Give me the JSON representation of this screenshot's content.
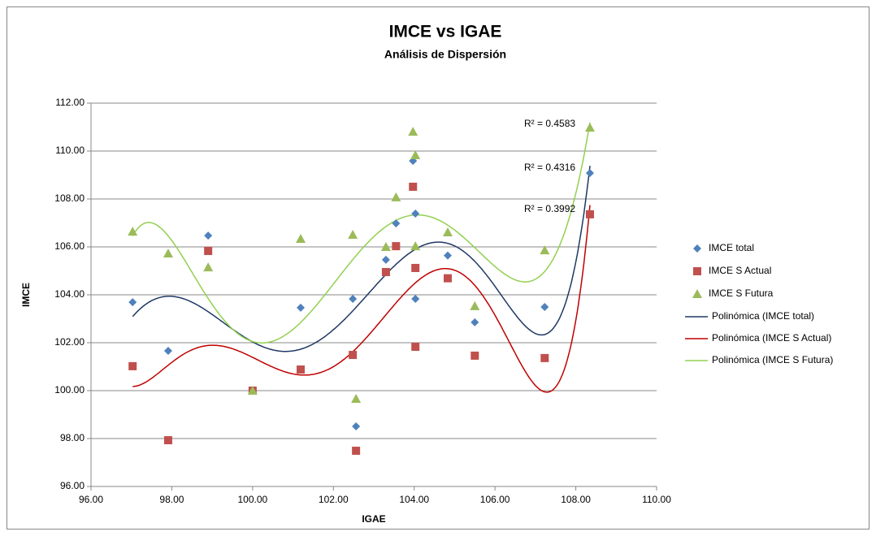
{
  "chart_data": {
    "type": "scatter",
    "title": "IMCE vs IGAE",
    "subtitle": "Análisis de Dispersión",
    "x_label": "IGAE",
    "y_label": "IMCE",
    "x": [
      97.03,
      97.91,
      98.9,
      100.0,
      101.19,
      102.48,
      102.56,
      103.3,
      103.55,
      103.97,
      104.03,
      104.03,
      104.83,
      105.5,
      107.23,
      108.35
    ],
    "series": [
      {
        "name": "IMCE total",
        "color": "#4f81bd",
        "marker": "diamond",
        "values": [
          103.69,
          101.66,
          106.47,
          100.0,
          103.46,
          103.83,
          98.51,
          105.46,
          106.98,
          109.59,
          107.39,
          103.83,
          105.64,
          102.85,
          103.49,
          109.08
        ],
        "trendline": {
          "name": "Polinómica (IMCE total)",
          "color": "#1f3864",
          "order": 6,
          "r2_label": "R² = 0.4316"
        }
      },
      {
        "name": "IMCE S Actual",
        "color": "#c0504d",
        "marker": "square",
        "values": [
          101.02,
          97.93,
          105.83,
          100.0,
          100.88,
          101.49,
          97.49,
          104.95,
          106.03,
          108.51,
          105.12,
          101.83,
          104.69,
          101.46,
          101.36,
          107.36
        ],
        "trendline": {
          "name": "Polinómica (IMCE S Actual)",
          "color": "#c00000",
          "order": 6,
          "r2_label": "R² = 0.3992"
        }
      },
      {
        "name": "IMCE S Futura",
        "color": "#9bbb59",
        "marker": "triangle",
        "values": [
          106.64,
          105.73,
          105.15,
          100.0,
          106.34,
          106.51,
          99.66,
          106.0,
          108.07,
          110.81,
          109.83,
          106.03,
          106.61,
          103.53,
          105.86,
          110.98
        ],
        "trendline": {
          "name": "Polinómica (IMCE S Futura)",
          "color": "#92d050",
          "order": 6,
          "r2_label": "R² = 0.4583"
        }
      }
    ],
    "xlim": [
      96,
      110
    ],
    "xticks": [
      {
        "value": 96,
        "label": "96.00"
      },
      {
        "value": 98,
        "label": "98.00"
      },
      {
        "value": 100,
        "label": "100.00"
      },
      {
        "value": 102,
        "label": "102.00"
      },
      {
        "value": 104,
        "label": "104.00"
      },
      {
        "value": 106,
        "label": "106.00"
      },
      {
        "value": 108,
        "label": "108.00"
      },
      {
        "value": 110,
        "label": "110.00"
      }
    ],
    "ylim": [
      96,
      112
    ],
    "yticks": [
      {
        "value": 96,
        "label": "96.00"
      },
      {
        "value": 98,
        "label": "98.00"
      },
      {
        "value": 100,
        "label": "100.00"
      },
      {
        "value": 102,
        "label": "102.00"
      },
      {
        "value": 104,
        "label": "104.00"
      },
      {
        "value": 106,
        "label": "106.00"
      },
      {
        "value": 108,
        "label": "108.00"
      },
      {
        "value": 110,
        "label": "110.00"
      },
      {
        "value": 112,
        "label": "112.00"
      }
    ],
    "grid": true,
    "legend": "right"
  }
}
